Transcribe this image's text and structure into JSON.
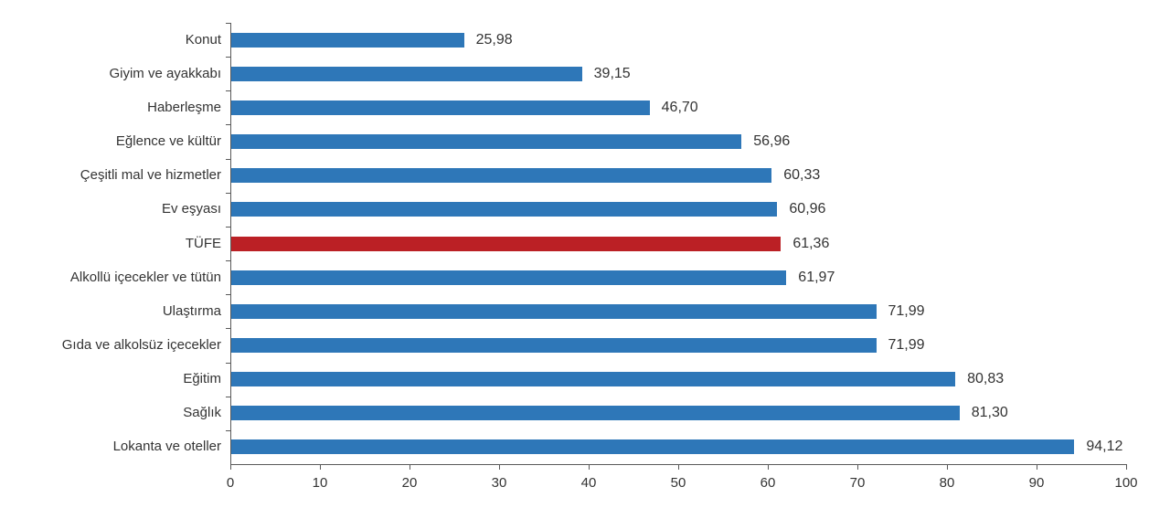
{
  "chart_data": {
    "type": "bar",
    "orientation": "horizontal",
    "title": "",
    "xlabel": "",
    "ylabel": "",
    "xlim": [
      0,
      100
    ],
    "x_ticks": [
      0,
      10,
      20,
      30,
      40,
      50,
      60,
      70,
      80,
      90,
      100
    ],
    "grid": false,
    "legend": "none",
    "categories": [
      "Konut",
      "Giyim ve ayakkabı",
      "Haberleşme",
      "Eğlence ve kültür",
      "Çeşitli mal ve hizmetler",
      "Ev eşyası",
      "TÜFE",
      "Alkollü içecekler ve tütün",
      "Ulaştırma",
      "Gıda ve alkolsüz içecekler",
      "Eğitim",
      "Sağlık",
      "Lokanta ve oteller"
    ],
    "values": [
      25.98,
      39.15,
      46.7,
      56.96,
      60.33,
      60.96,
      61.36,
      61.97,
      71.99,
      71.99,
      80.83,
      81.3,
      94.12
    ],
    "value_labels": [
      "25,98",
      "39,15",
      "46,70",
      "56,96",
      "60,33",
      "60,96",
      "61,36",
      "61,97",
      "71,99",
      "71,99",
      "80,83",
      "81,30",
      "94,12"
    ],
    "highlight_category": "TÜFE",
    "highlight_index": 6,
    "colors": {
      "bar": "#2E77B8",
      "highlight_bar": "#BB2025",
      "axis": "#595959",
      "text": "#333333",
      "background": "#FFFFFF"
    }
  }
}
